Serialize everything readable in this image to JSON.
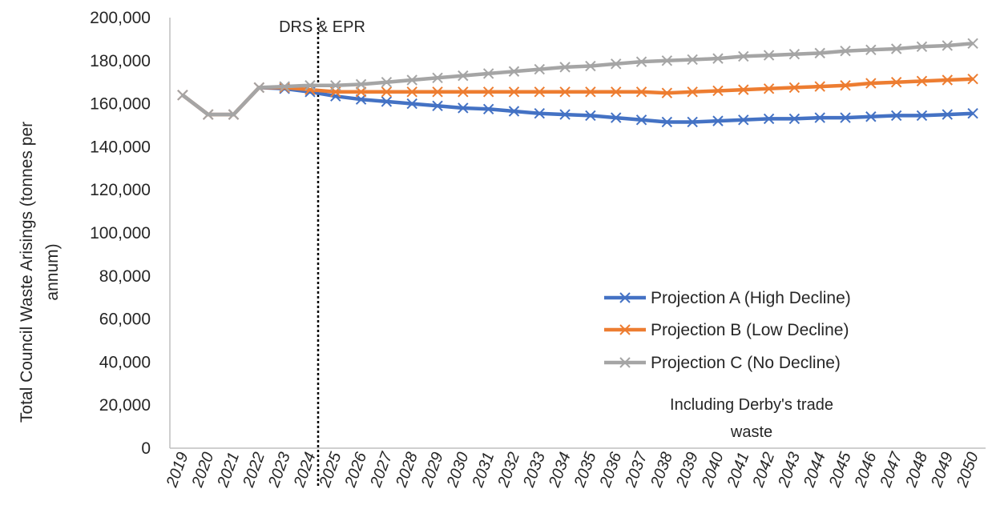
{
  "chart_data": {
    "type": "line",
    "ylabel_lines": [
      "Total Council Waste Arisings (tonnes per",
      "annum)"
    ],
    "ylim": [
      0,
      200000
    ],
    "yticks": [
      0,
      20000,
      40000,
      60000,
      80000,
      100000,
      120000,
      140000,
      160000,
      180000,
      200000
    ],
    "ytick_labels": [
      "0",
      "20,000",
      "40,000",
      "60,000",
      "80,000",
      "100,000",
      "120,000",
      "140,000",
      "160,000",
      "180,000",
      "200,000"
    ],
    "x": [
      "2019",
      "2020",
      "2021",
      "2022",
      "2023",
      "2024",
      "2025",
      "2026",
      "2027",
      "2028",
      "2029",
      "2030",
      "2031",
      "2032",
      "2033",
      "2034",
      "2035",
      "2036",
      "2037",
      "2038",
      "2039",
      "2040",
      "2041",
      "2042",
      "2043",
      "2044",
      "2045",
      "2046",
      "2047",
      "2048",
      "2049",
      "2050"
    ],
    "grid": false,
    "legend_position": "lower-right",
    "series": [
      {
        "name": "Projection A (High Decline)",
        "color": "#4472c4",
        "values": [
          164000,
          155000,
          155000,
          167500,
          167000,
          165500,
          163500,
          162000,
          161000,
          160000,
          159000,
          158000,
          157500,
          156500,
          155500,
          155000,
          154500,
          153500,
          152500,
          151500,
          151500,
          152000,
          152500,
          153000,
          153000,
          153500,
          153500,
          154000,
          154500,
          154500,
          155000,
          155500
        ]
      },
      {
        "name": "Projection B (Low Decline)",
        "color": "#ed7d31",
        "values": [
          164000,
          155000,
          155000,
          167500,
          167500,
          166500,
          165500,
          165500,
          165500,
          165500,
          165500,
          165500,
          165500,
          165500,
          165500,
          165500,
          165500,
          165500,
          165500,
          165000,
          165500,
          166000,
          166500,
          167000,
          167500,
          168000,
          168500,
          169500,
          170000,
          170500,
          171000,
          171500
        ]
      },
      {
        "name": "Projection C (No Decline)",
        "color": "#a5a5a5",
        "values": [
          164000,
          155000,
          155000,
          167500,
          168000,
          168500,
          168500,
          169000,
          170000,
          171000,
          172000,
          173000,
          174000,
          175000,
          176000,
          177000,
          177500,
          178500,
          179500,
          180000,
          180500,
          181000,
          182000,
          182500,
          183000,
          183500,
          184500,
          185000,
          185500,
          186500,
          187000,
          188000
        ]
      }
    ],
    "annotations": [
      {
        "text": "DRS & EPR",
        "marker": "dotted vertical line between 2024 and 2025"
      },
      {
        "text_lines": [
          "Including Derby's trade",
          "waste"
        ]
      }
    ]
  }
}
